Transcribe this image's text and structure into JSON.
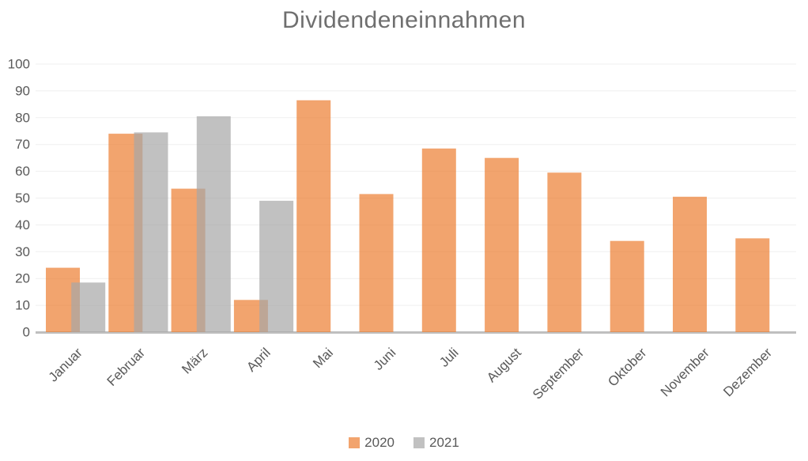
{
  "chart_data": {
    "type": "bar",
    "title": "Dividendeneinnahmen",
    "categories": [
      "Januar",
      "Februar",
      "März",
      "April",
      "Mai",
      "Juni",
      "Juli",
      "August",
      "September",
      "Oktober",
      "November",
      "Dezember"
    ],
    "series": [
      {
        "name": "2020",
        "color": "rgba(237,125,49,0.7)",
        "values": [
          24,
          74,
          53.5,
          12,
          86.5,
          51.5,
          68.5,
          65,
          59.5,
          34,
          50.5,
          35
        ]
      },
      {
        "name": "2021",
        "color": "rgba(166,166,166,0.7)",
        "values": [
          18.5,
          74.5,
          80.5,
          49,
          null,
          null,
          null,
          null,
          null,
          null,
          null,
          null
        ]
      }
    ],
    "xlabel": "",
    "ylabel": "",
    "ylim": [
      0,
      100
    ],
    "yticks": [
      0,
      10,
      20,
      30,
      40,
      50,
      60,
      70,
      80,
      90,
      100
    ],
    "grid": true,
    "legend_position": "bottom",
    "colors": {
      "axis_line": "#BFBFBF",
      "gridline": "#EFEFEF",
      "tick_label": "#595959",
      "title": "#6F6F6F",
      "background": "#FFFFFF"
    }
  }
}
